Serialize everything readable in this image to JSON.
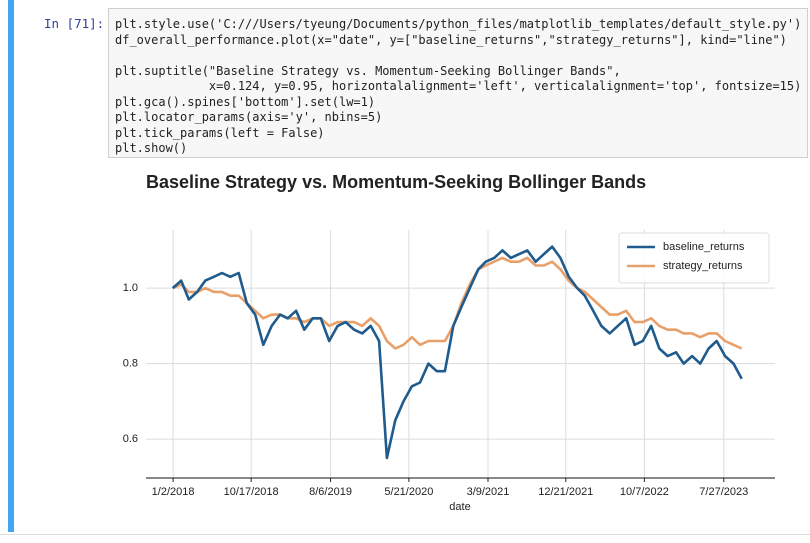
{
  "cell": {
    "prompt": "In [71]:",
    "code_blocks": [
      [
        "plt.style.use('C:///Users/tyeung/Documents/python_files/matplotlib_templates/default_style.py')",
        "df_overall_performance.plot(x=\"date\", y=[\"baseline_returns\",\"strategy_returns\"], kind=\"line\")"
      ],
      [
        "plt.suptitle(\"Baseline Strategy vs. Momentum-Seeking Bollinger Bands\",",
        "             x=0.124, y=0.95, horizontalalignment='left', verticalalignment='top', fontsize=15)",
        "plt.gca().spines['bottom'].set(lw=1)",
        "plt.locator_params(axis='y', nbins=5)",
        "plt.tick_params(left = False)",
        "plt.show()"
      ]
    ]
  },
  "chart_data": {
    "type": "line",
    "title": "Baseline Strategy vs. Momentum-Seeking Bollinger Bands",
    "x_label": "date",
    "x": [
      "1/1/2018",
      "2/1/2018",
      "3/1/2018",
      "4/1/2018",
      "5/1/2018",
      "6/1/2018",
      "7/1/2018",
      "8/1/2018",
      "9/1/2018",
      "10/1/2018",
      "11/1/2018",
      "12/1/2018",
      "1/1/2019",
      "2/1/2019",
      "3/1/2019",
      "4/1/2019",
      "5/1/2019",
      "6/1/2019",
      "7/1/2019",
      "8/1/2019",
      "9/1/2019",
      "10/1/2019",
      "11/1/2019",
      "12/1/2019",
      "1/1/2020",
      "2/1/2020",
      "3/1/2020",
      "4/1/2020",
      "5/1/2020",
      "6/1/2020",
      "7/1/2020",
      "8/1/2020",
      "9/1/2020",
      "10/1/2020",
      "11/1/2020",
      "12/1/2020",
      "1/1/2021",
      "2/1/2021",
      "3/1/2021",
      "4/1/2021",
      "5/1/2021",
      "6/1/2021",
      "7/1/2021",
      "8/1/2021",
      "9/1/2021",
      "10/1/2021",
      "11/1/2021",
      "12/1/2021",
      "1/1/2022",
      "2/1/2022",
      "3/1/2022",
      "4/1/2022",
      "5/1/2022",
      "6/1/2022",
      "7/1/2022",
      "8/1/2022",
      "9/1/2022",
      "10/1/2022",
      "11/1/2022",
      "12/1/2022",
      "1/1/2023",
      "2/1/2023",
      "3/1/2023",
      "4/1/2023",
      "5/1/2023",
      "6/1/2023",
      "7/1/2023",
      "8/1/2023",
      "9/1/2023",
      "10/1/2023"
    ],
    "series": [
      {
        "name": "baseline_returns",
        "color": "#1f5b8c",
        "values": [
          1.0,
          1.02,
          0.97,
          0.99,
          1.02,
          1.03,
          1.04,
          1.03,
          1.04,
          0.96,
          0.93,
          0.85,
          0.9,
          0.93,
          0.92,
          0.94,
          0.89,
          0.92,
          0.92,
          0.86,
          0.9,
          0.91,
          0.89,
          0.88,
          0.9,
          0.86,
          0.55,
          0.65,
          0.7,
          0.74,
          0.75,
          0.8,
          0.78,
          0.78,
          0.9,
          0.95,
          1.0,
          1.05,
          1.07,
          1.08,
          1.1,
          1.08,
          1.09,
          1.1,
          1.07,
          1.09,
          1.11,
          1.08,
          1.03,
          1.0,
          0.98,
          0.94,
          0.9,
          0.88,
          0.9,
          0.92,
          0.85,
          0.86,
          0.9,
          0.84,
          0.82,
          0.83,
          0.8,
          0.82,
          0.8,
          0.84,
          0.86,
          0.82,
          0.8,
          0.76
        ]
      },
      {
        "name": "strategy_returns",
        "color": "#e8a06b",
        "values": [
          1.0,
          1.01,
          0.99,
          0.99,
          1.0,
          0.99,
          0.99,
          0.98,
          0.98,
          0.96,
          0.94,
          0.92,
          0.93,
          0.93,
          0.92,
          0.92,
          0.91,
          0.92,
          0.92,
          0.9,
          0.91,
          0.91,
          0.91,
          0.9,
          0.92,
          0.9,
          0.86,
          0.84,
          0.85,
          0.87,
          0.85,
          0.86,
          0.86,
          0.86,
          0.9,
          0.96,
          1.01,
          1.05,
          1.06,
          1.07,
          1.08,
          1.07,
          1.07,
          1.08,
          1.06,
          1.06,
          1.07,
          1.05,
          1.02,
          1.0,
          0.99,
          0.97,
          0.95,
          0.93,
          0.93,
          0.94,
          0.91,
          0.91,
          0.92,
          0.9,
          0.89,
          0.89,
          0.88,
          0.88,
          0.87,
          0.88,
          0.88,
          0.86,
          0.85,
          0.84
        ]
      }
    ],
    "xlim": [
      "9/24/2017",
      "2/1/2024"
    ],
    "xticks": [
      "1/2/2018",
      "10/17/2018",
      "8/6/2019",
      "5/21/2020",
      "3/9/2021",
      "12/21/2021",
      "10/7/2022",
      "7/27/2023"
    ],
    "ylim": [
      0.497,
      1.154
    ],
    "yticks": [
      0.6,
      0.8,
      {
        "value": 1,
        "label": "1.0"
      }
    ],
    "grid": true,
    "legend": "upper right"
  }
}
